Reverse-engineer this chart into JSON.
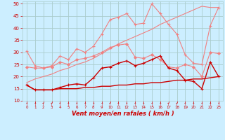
{
  "xlabel": "Vent moyen/en rafales ( km/h )",
  "x": [
    0,
    1,
    2,
    3,
    4,
    5,
    6,
    7,
    8,
    9,
    10,
    11,
    12,
    13,
    14,
    15,
    16,
    17,
    18,
    19,
    20,
    21,
    22,
    23
  ],
  "series": [
    {
      "color": "#f08080",
      "lw": 0.8,
      "marker": "+",
      "ms": 3,
      "mew": 0.8,
      "values": [
        30.5,
        24.5,
        23.5,
        24.5,
        28.5,
        27.0,
        31.5,
        30.0,
        32.5,
        37.5,
        43.5,
        44.5,
        46.0,
        41.5,
        42.0,
        50.0,
        46.0,
        41.5,
        37.5,
        29.0,
        25.5,
        25.0,
        41.0,
        48.5
      ]
    },
    {
      "color": "#f08080",
      "lw": 0.8,
      "marker": null,
      "ms": 0,
      "mew": 0,
      "values": [
        17.5,
        19.0,
        20.0,
        21.0,
        22.5,
        23.5,
        25.0,
        26.0,
        27.5,
        29.5,
        31.5,
        33.5,
        35.0,
        36.5,
        38.0,
        39.5,
        41.5,
        43.0,
        44.5,
        46.0,
        47.5,
        49.0,
        48.5,
        48.5
      ]
    },
    {
      "color": "#f08080",
      "lw": 0.8,
      "marker": "D",
      "ms": 2,
      "mew": 0.6,
      "values": [
        24.0,
        23.5,
        23.5,
        24.0,
        26.0,
        25.0,
        27.0,
        27.5,
        28.5,
        30.0,
        32.0,
        33.0,
        33.5,
        28.0,
        27.5,
        29.0,
        27.0,
        24.0,
        23.5,
        25.0,
        24.0,
        20.0,
        30.0,
        29.5
      ]
    },
    {
      "color": "#cc0000",
      "lw": 1.0,
      "marker": "+",
      "ms": 3,
      "mew": 0.8,
      "values": [
        16.5,
        14.5,
        14.5,
        14.5,
        15.5,
        16.5,
        17.0,
        16.5,
        19.5,
        23.5,
        24.0,
        25.5,
        26.5,
        24.5,
        25.5,
        27.0,
        28.5,
        23.5,
        22.5,
        18.5,
        18.0,
        15.0,
        26.0,
        20.0
      ]
    },
    {
      "color": "#cc0000",
      "lw": 1.0,
      "marker": null,
      "ms": 0,
      "mew": 0,
      "values": [
        16.5,
        14.5,
        14.5,
        14.5,
        15.0,
        15.0,
        15.0,
        15.5,
        15.5,
        16.0,
        16.0,
        16.5,
        16.5,
        17.0,
        17.0,
        17.5,
        17.5,
        18.0,
        18.5,
        18.5,
        19.0,
        19.0,
        19.5,
        20.0
      ]
    }
  ],
  "ylim": [
    10,
    51
  ],
  "yticks": [
    10,
    15,
    20,
    25,
    30,
    35,
    40,
    45,
    50
  ],
  "bg_color": "#cceeff",
  "grid_color": "#aacccc",
  "tick_color": "#cc0000",
  "label_color": "#cc0000",
  "xtick_labels": [
    "0",
    "1",
    "2",
    "3",
    "4",
    "5",
    "6",
    "7",
    "8",
    "9",
    "10",
    "11",
    "12",
    "13",
    "14",
    "15",
    "16",
    "17",
    "18",
    "19",
    "20",
    "21",
    "22",
    "23"
  ]
}
